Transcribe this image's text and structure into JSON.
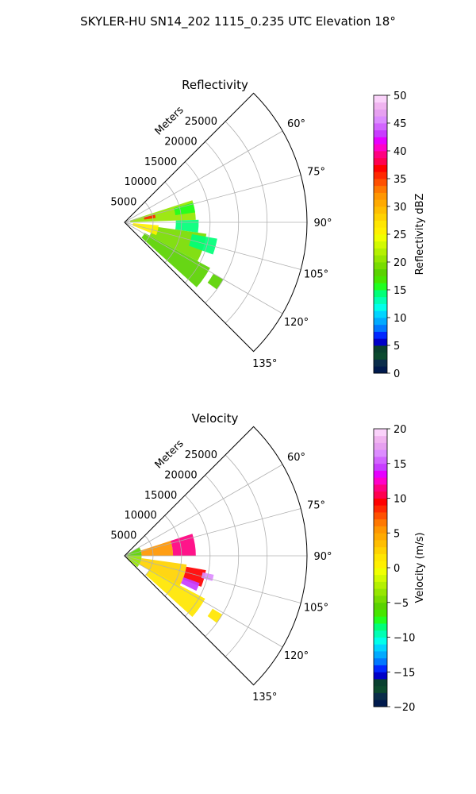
{
  "suptitle": "SKYLER-HU  SN14_202  1115_0.235 UTC Elevation 18°",
  "colors": {
    "grid": "#b0b0b0",
    "frame": "#000000",
    "background": "#ffffff"
  },
  "chart_data": [
    {
      "type": "polar-sector",
      "title": "Reflectivity",
      "range_label": "Meters",
      "angle_ticks": [
        "60°",
        "75°",
        "90°",
        "105°",
        "120°",
        "135°"
      ],
      "angle_values": [
        60,
        75,
        90,
        105,
        120,
        135
      ],
      "sector_deg": [
        45,
        135
      ],
      "range_ticks": [
        "5000",
        "10000",
        "15000",
        "20000",
        "25000"
      ],
      "range_values": [
        5000,
        10000,
        15000,
        20000,
        25000
      ],
      "rmax": 32000,
      "grid": true,
      "colorbar": {
        "label": "Reflectivity dBZ",
        "min": 0,
        "max": 50,
        "ticks": [
          "0",
          "5",
          "10",
          "15",
          "20",
          "25",
          "30",
          "35",
          "40",
          "45",
          "50"
        ],
        "tick_values": [
          0,
          5,
          10,
          15,
          20,
          25,
          30,
          35,
          40,
          45,
          50
        ],
        "colors": [
          "#001a4d",
          "#0a2d4a",
          "#0c4a2f",
          "#0a4030",
          "#0000c8",
          "#0028ff",
          "#0078ff",
          "#00aaff",
          "#00d4ff",
          "#00ffea",
          "#00ffb4",
          "#00ff78",
          "#20ff20",
          "#46e600",
          "#5ad200",
          "#78dc00",
          "#96e600",
          "#b4f000",
          "#d2fa00",
          "#f0ff00",
          "#fff000",
          "#ffe600",
          "#ffd200",
          "#ffbe00",
          "#ffaa00",
          "#ff9600",
          "#ff7800",
          "#ff5000",
          "#ff2800",
          "#ff0000",
          "#ff0050",
          "#ff0080",
          "#ff00c8",
          "#e600ff",
          "#c83cff",
          "#d264ff",
          "#dc8cff",
          "#e6a0f0",
          "#f0b4f0",
          "#fad2fa"
        ]
      },
      "echo_regions": [
        {
          "az": [
            72,
            88
          ],
          "r": [
            1000,
            12500
          ],
          "value": 20
        },
        {
          "az": [
            74,
            82
          ],
          "r": [
            9000,
            12500
          ],
          "value": 16
        },
        {
          "az": [
            88,
            98
          ],
          "r": [
            9000,
            13000
          ],
          "value": 14
        },
        {
          "az": [
            98,
            118
          ],
          "r": [
            5000,
            14500
          ],
          "value": 19
        },
        {
          "az": [
            118,
            132
          ],
          "r": [
            4000,
            17000
          ],
          "value": 18
        },
        {
          "az": [
            100,
            110
          ],
          "r": [
            12000,
            16500
          ],
          "value": 14
        },
        {
          "az": [
            76,
            82
          ],
          "r": [
            3500,
            5500
          ],
          "value": 36
        },
        {
          "az": [
            95,
            112
          ],
          "r": [
            1500,
            6000
          ],
          "value": 26
        },
        {
          "az": [
            120,
            126
          ],
          "r": [
            18000,
            20000
          ],
          "value": 18
        }
      ]
    },
    {
      "type": "polar-sector",
      "title": "Velocity",
      "range_label": "Meters",
      "angle_ticks": [
        "60°",
        "75°",
        "90°",
        "105°",
        "120°",
        "135°"
      ],
      "angle_values": [
        60,
        75,
        90,
        105,
        120,
        135
      ],
      "sector_deg": [
        45,
        135
      ],
      "range_ticks": [
        "5000",
        "10000",
        "15000",
        "20000",
        "25000"
      ],
      "range_values": [
        5000,
        10000,
        15000,
        20000,
        25000
      ],
      "rmax": 32000,
      "grid": true,
      "colorbar": {
        "label": "Velocity (m/s)",
        "min": -20,
        "max": 20,
        "ticks": [
          "−20",
          "−15",
          "−10",
          "−5",
          "0",
          "5",
          "10",
          "15",
          "20"
        ],
        "tick_values": [
          -20,
          -15,
          -10,
          -5,
          0,
          5,
          10,
          15,
          20
        ],
        "colors": [
          "#001a4d",
          "#0a2d4a",
          "#0c4a2f",
          "#0a4030",
          "#0000c8",
          "#0028ff",
          "#0078ff",
          "#00aaff",
          "#00d4ff",
          "#00ffea",
          "#00ffb4",
          "#00ff78",
          "#20ff20",
          "#46e600",
          "#5ad200",
          "#78dc00",
          "#96e600",
          "#b4f000",
          "#d2fa00",
          "#f0ff00",
          "#fff000",
          "#ffe600",
          "#ffd200",
          "#ffbe00",
          "#ffaa00",
          "#ff9600",
          "#ff7800",
          "#ff5000",
          "#ff2800",
          "#ff0000",
          "#ff0050",
          "#ff0080",
          "#ff00c8",
          "#e600ff",
          "#c83cff",
          "#d264ff",
          "#dc8cff",
          "#e6a0f0",
          "#f0b4f0",
          "#fad2fa"
        ]
      },
      "echo_regions": [
        {
          "az": [
            60,
            90
          ],
          "r": [
            0,
            3000
          ],
          "value": -6
        },
        {
          "az": [
            90,
            132
          ],
          "r": [
            0,
            3000
          ],
          "value": -4
        },
        {
          "az": [
            72,
            90
          ],
          "r": [
            3000,
            8500
          ],
          "value": 5
        },
        {
          "az": [
            72,
            90
          ],
          "r": [
            8500,
            12500
          ],
          "value": 11
        },
        {
          "az": [
            98,
            120
          ],
          "r": [
            3000,
            11000
          ],
          "value": 2
        },
        {
          "az": [
            100,
            112
          ],
          "r": [
            11000,
            14500
          ],
          "value": 9
        },
        {
          "az": [
            102,
            106
          ],
          "r": [
            14000,
            16000
          ],
          "value": 16
        },
        {
          "az": [
            110,
            116
          ],
          "r": [
            11000,
            14000
          ],
          "value": 14
        },
        {
          "az": [
            118,
            132
          ],
          "r": [
            5000,
            16000
          ],
          "value": 1
        },
        {
          "az": [
            121,
            126
          ],
          "r": [
            18000,
            20000
          ],
          "value": 1
        }
      ]
    }
  ]
}
